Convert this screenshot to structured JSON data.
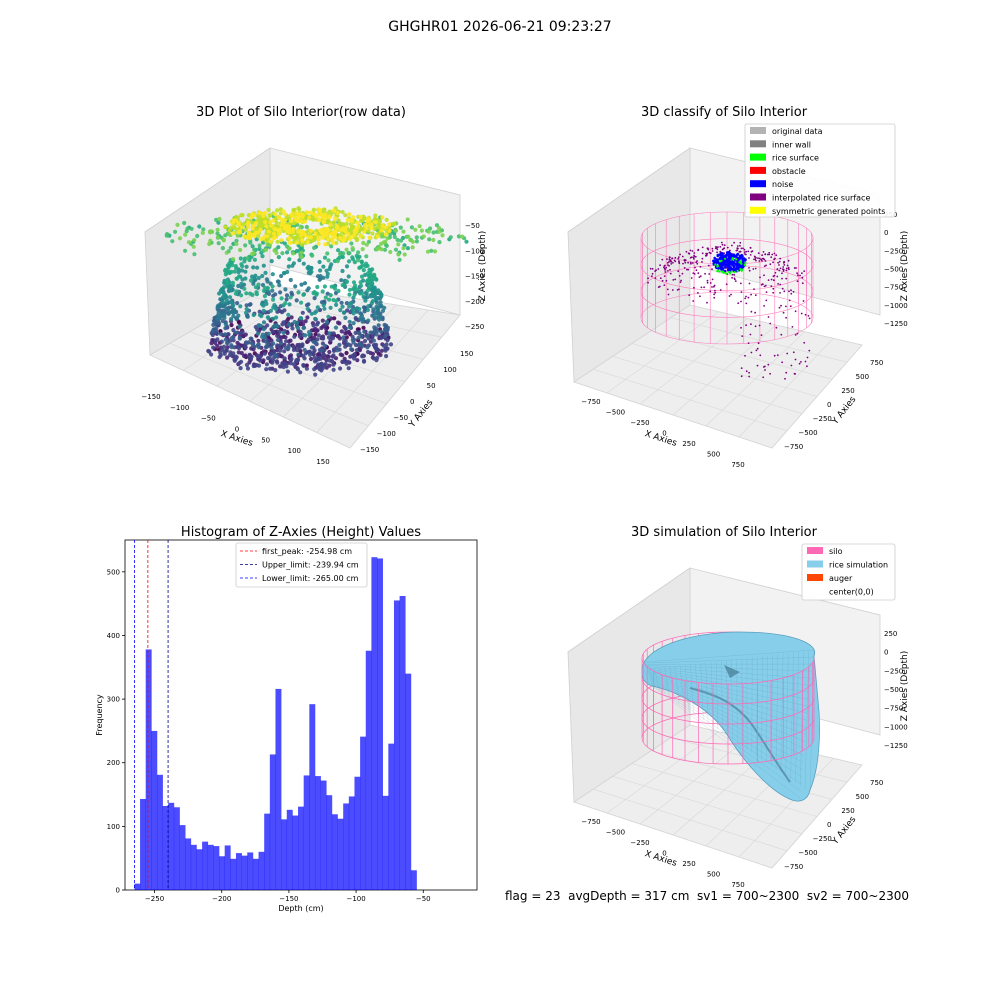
{
  "figure": {
    "suptitle": "GHGHR01 2026-06-21 09:23:27",
    "footer": "flag = 23  avgDepth = 317 cm  sv1 = 700~2300  sv2 = 700~2300"
  },
  "colors": {
    "pane": "#f2f2f2",
    "grid": "#d8d8d8",
    "silo": "#ff69b4",
    "rice": "#87ceeb",
    "auger": "#ff4500",
    "hist": "#0000ff",
    "original": "#b3b3b3",
    "inner_wall": "#808080",
    "rice_surface": "#00ff00",
    "obstacle": "#ff0000",
    "noise": "#0000ff",
    "interp": "#800080",
    "sym": "#ffff00"
  },
  "chart_data": [
    {
      "type": "scatter",
      "title": "3D Plot of Silo Interior(row data)",
      "xlabel": "X Axies",
      "ylabel": "Y Axies",
      "zlabel": "Z Axies (Depth)",
      "x_ticks": [
        "−150",
        "−100",
        "−50",
        "0",
        "50",
        "100",
        "150"
      ],
      "y_ticks": [
        "−150",
        "−100",
        "−50",
        "0",
        "50",
        "100",
        "150"
      ],
      "z_ticks": [
        "−50",
        "−100",
        "−150",
        "−200",
        "−250"
      ],
      "xlim": [
        -150,
        150
      ],
      "ylim": [
        -150,
        150
      ],
      "zlim": [
        -275,
        -25
      ],
      "colormap": "viridis"
    },
    {
      "type": "scatter",
      "title": "3D classify of Silo Interior",
      "xlabel": "X Axies",
      "ylabel": "Y Axies",
      "zlabel": "Z Axies (Depth)",
      "x_ticks": [
        "−750",
        "−500",
        "−250",
        "0",
        "250",
        "500",
        "750"
      ],
      "y_ticks": [
        "750",
        "500",
        "250",
        "0",
        "−250",
        "−500",
        "−750"
      ],
      "z_ticks": [
        "250",
        "0",
        "−250",
        "−500",
        "−750",
        "−1000",
        "−1250"
      ],
      "legend": [
        {
          "label": "original data",
          "color": "#b3b3b3"
        },
        {
          "label": "inner wall",
          "color": "#808080"
        },
        {
          "label": "rice surface",
          "color": "#00ff00"
        },
        {
          "label": "obstacle",
          "color": "#ff0000"
        },
        {
          "label": "noise",
          "color": "#0000ff"
        },
        {
          "label": "interpolated rice surface",
          "color": "#800080"
        },
        {
          "label": "symmetric generated points",
          "color": "#ffff00"
        }
      ],
      "legend_loc": "upper right"
    },
    {
      "type": "bar",
      "title": "Histogram of Z-Axies (Height) Values",
      "xlabel": "Depth (cm)",
      "ylabel": "Frequency",
      "xlim": [
        -272,
        -10
      ],
      "ylim": [
        0,
        550
      ],
      "x_ticks": [
        -250,
        -200,
        -150,
        -100,
        -50
      ],
      "x_tick_labels": [
        "−250",
        "−200",
        "−150",
        "−100",
        "−50"
      ],
      "y_ticks": [
        0,
        100,
        200,
        300,
        400,
        500
      ],
      "bin_start": -265,
      "bin_width": 4.2,
      "values": [
        10,
        143,
        378,
        250,
        181,
        132,
        137,
        130,
        102,
        81,
        71,
        64,
        76,
        71,
        69,
        53,
        70,
        49,
        58,
        54,
        59,
        49,
        60,
        120,
        213,
        316,
        111,
        126,
        117,
        131,
        180,
        292,
        179,
        172,
        149,
        119,
        112,
        136,
        147,
        178,
        241,
        376,
        523,
        521,
        148,
        230,
        455,
        462,
        340,
        31
      ],
      "lines": [
        {
          "label": "first_peak: -254.98 cm",
          "x": -254.98,
          "color": "#ff0000"
        },
        {
          "label": "Upper_limit: -239.94 cm",
          "x": -239.94,
          "color": "#00008b"
        },
        {
          "label": "Lower_limit: -265.00 cm",
          "x": -265.0,
          "color": "#0000ff"
        }
      ]
    },
    {
      "type": "surface",
      "title": "3D simulation of Silo Interior",
      "xlabel": "X Axies",
      "ylabel": "Y Axies",
      "zlabel": "Z Axies (Depth)",
      "x_ticks": [
        "−750",
        "−500",
        "−250",
        "0",
        "250",
        "500",
        "750"
      ],
      "y_ticks": [
        "750",
        "500",
        "250",
        "0",
        "−250",
        "−500",
        "−750"
      ],
      "z_ticks": [
        "250",
        "0",
        "−250",
        "−500",
        "−750",
        "−1000",
        "−1250"
      ],
      "legend": [
        {
          "label": "silo",
          "color": "#ff69b4"
        },
        {
          "label": "rice simulation",
          "color": "#87ceeb"
        },
        {
          "label": "auger",
          "color": "#ff4500"
        },
        {
          "label": "center(0,0)",
          "color": ""
        }
      ],
      "legend_loc": "upper right"
    }
  ]
}
